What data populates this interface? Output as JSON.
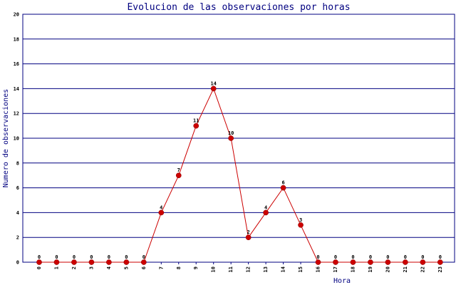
{
  "chart_data": {
    "type": "line",
    "title": "Evolucion de las observaciones por horas",
    "xlabel": "Hora",
    "ylabel": "Numero de observaciones",
    "categories": [
      "0",
      "1",
      "2",
      "3",
      "4",
      "5",
      "6",
      "7",
      "8",
      "9",
      "10",
      "11",
      "12",
      "13",
      "14",
      "15",
      "16",
      "17",
      "18",
      "19",
      "20",
      "21",
      "22",
      "23"
    ],
    "series": [
      {
        "values": [
          0,
          0,
          0,
          0,
          0,
          0,
          0,
          4,
          7,
          11,
          14,
          10,
          2,
          4,
          6,
          3,
          0,
          0,
          0,
          0,
          0,
          0,
          0,
          0
        ]
      }
    ],
    "ylim": [
      0,
      20
    ],
    "yticks": [
      0,
      2,
      4,
      6,
      8,
      10,
      12,
      14,
      16,
      18,
      20
    ],
    "grid": true,
    "colors": {
      "line": "#cc0000",
      "marker": "#cc0000",
      "grid": "#000080",
      "axis": "#000080",
      "title": "#000080"
    }
  }
}
